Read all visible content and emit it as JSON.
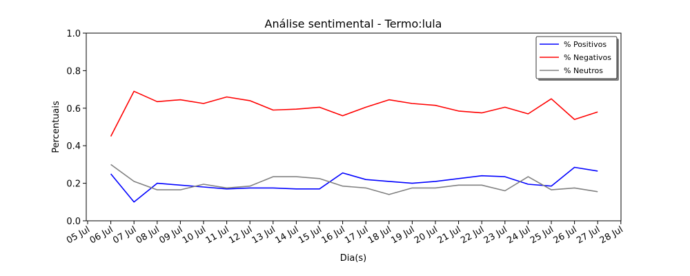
{
  "chart_data": {
    "type": "line",
    "title": "Análise sentimental - Termo:lula",
    "xlabel": "Dia(s)",
    "ylabel": "Percentuais",
    "ylim": [
      0.0,
      1.0
    ],
    "yticks": [
      "0.0",
      "0.2",
      "0.4",
      "0.6",
      "0.8",
      "1.0"
    ],
    "x_tick_labels": [
      "05 Jul",
      "06 Jul",
      "07 Jul",
      "08 Jul",
      "09 Jul",
      "10 Jul",
      "11 Jul",
      "12 Jul",
      "13 Jul",
      "14 Jul",
      "15 Jul",
      "16 Jul",
      "17 Jul",
      "18 Jul",
      "19 Jul",
      "20 Jul",
      "21 Jul",
      "22 Jul",
      "23 Jul",
      "24 Jul",
      "25 Jul",
      "26 Jul",
      "27 Jul",
      "28 Jul"
    ],
    "x": [
      "06 Jul",
      "07 Jul",
      "08 Jul",
      "09 Jul",
      "10 Jul",
      "11 Jul",
      "12 Jul",
      "13 Jul",
      "14 Jul",
      "15 Jul",
      "16 Jul",
      "17 Jul",
      "18 Jul",
      "19 Jul",
      "20 Jul",
      "21 Jul",
      "22 Jul",
      "23 Jul",
      "24 Jul",
      "25 Jul",
      "26 Jul",
      "27 Jul"
    ],
    "grid": false,
    "legend_position": "top-right",
    "series": [
      {
        "name": "% Positivos",
        "color": "#0000ff",
        "values": [
          0.25,
          0.1,
          0.2,
          0.19,
          0.18,
          0.17,
          0.175,
          0.175,
          0.17,
          0.17,
          0.255,
          0.22,
          0.21,
          0.2,
          0.21,
          0.225,
          0.24,
          0.235,
          0.195,
          0.185,
          0.285,
          0.265
        ]
      },
      {
        "name": "% Negativos",
        "color": "#ff0000",
        "values": [
          0.45,
          0.69,
          0.635,
          0.645,
          0.625,
          0.66,
          0.64,
          0.59,
          0.595,
          0.605,
          0.56,
          0.605,
          0.645,
          0.625,
          0.615,
          0.585,
          0.575,
          0.605,
          0.57,
          0.65,
          0.54,
          0.58
        ]
      },
      {
        "name": "% Neutros",
        "color": "#808080",
        "values": [
          0.3,
          0.21,
          0.165,
          0.165,
          0.195,
          0.175,
          0.185,
          0.235,
          0.235,
          0.225,
          0.185,
          0.175,
          0.14,
          0.175,
          0.175,
          0.19,
          0.19,
          0.16,
          0.235,
          0.165,
          0.175,
          0.155
        ]
      }
    ]
  }
}
